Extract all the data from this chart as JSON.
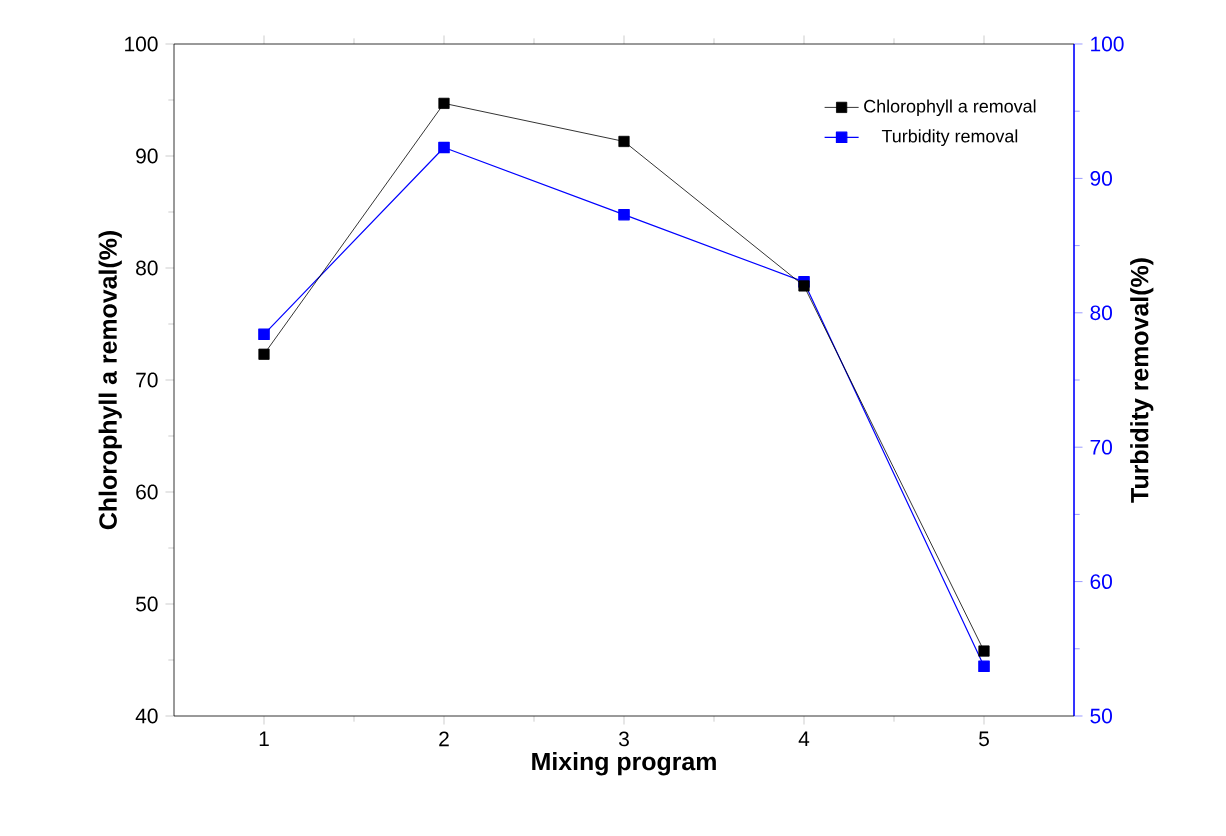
{
  "chart_data": {
    "type": "line",
    "xlabel": "Mixing program",
    "ylabel": "Chlorophyll a removal(%)",
    "y2label": "Turbidity removal(%)",
    "x": [
      1,
      2,
      3,
      4,
      5
    ],
    "series": [
      {
        "name": "Chlorophyll a removal",
        "color": "#000000",
        "values": [
          72.3,
          94.7,
          91.3,
          78.4,
          45.8
        ]
      },
      {
        "name": "Turbidity removal",
        "color": "#0000ff",
        "axis": "y2",
        "values": [
          78.4,
          92.3,
          87.3,
          82.3,
          53.7
        ]
      }
    ],
    "xlim": [
      0.5,
      5.5
    ],
    "xticks": [
      1,
      2,
      3,
      4,
      5
    ],
    "ylim": [
      40,
      100
    ],
    "yticks": [
      40,
      50,
      60,
      70,
      80,
      90,
      100
    ],
    "y2lim": [
      50,
      100
    ],
    "y2ticks": [
      50,
      60,
      70,
      80,
      90,
      100
    ],
    "marker": "square",
    "legend": "top right"
  }
}
